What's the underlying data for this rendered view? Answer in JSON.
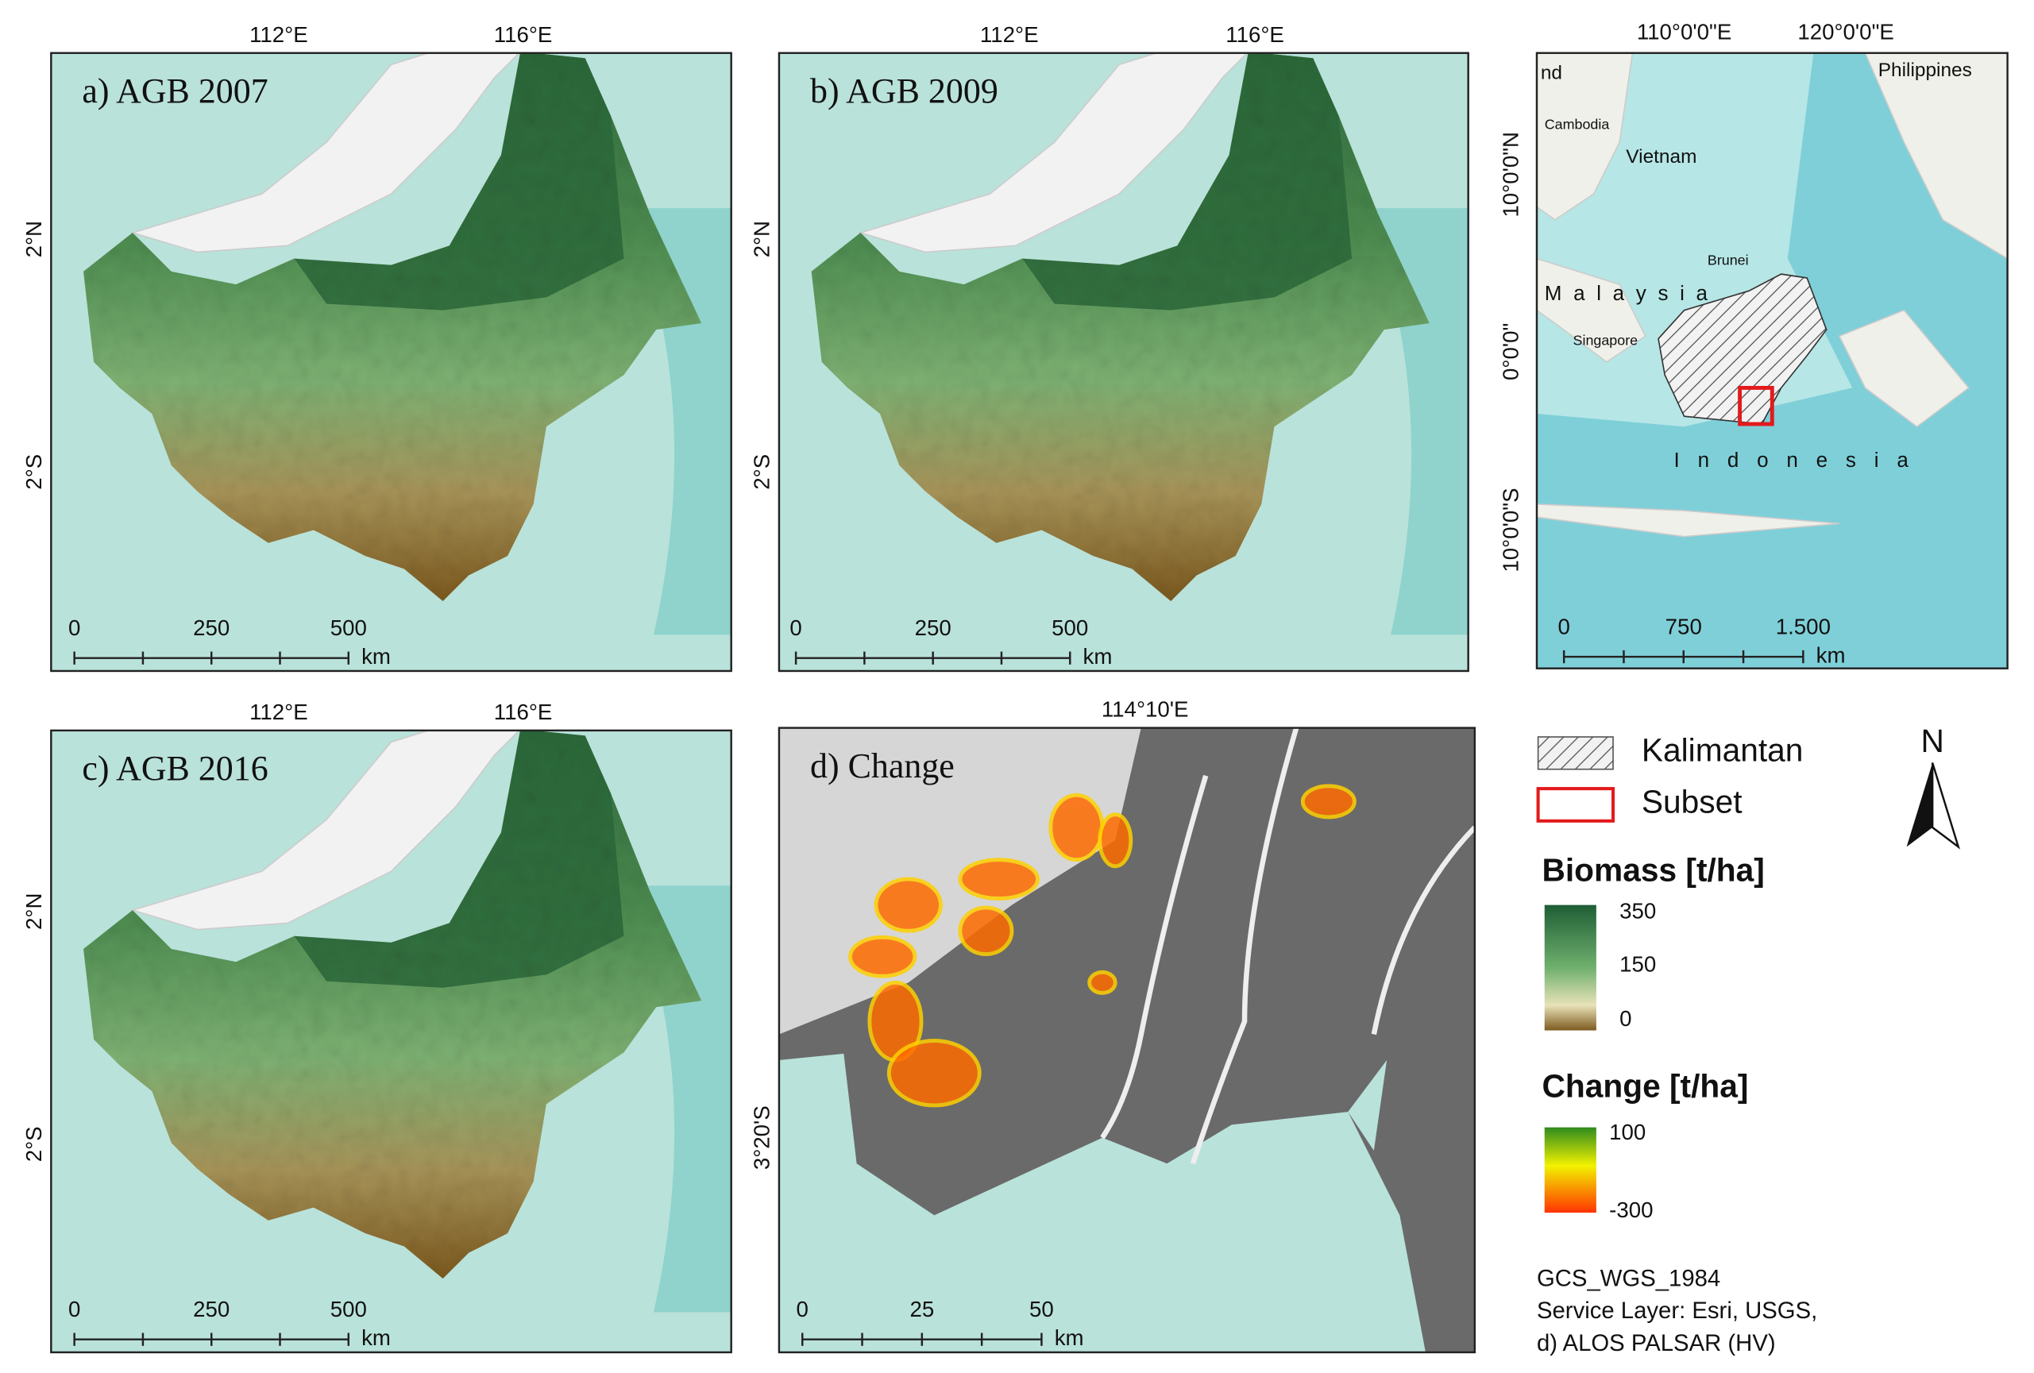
{
  "panels": [
    {
      "title": "a) AGB 2007",
      "x_labels": [
        "112°E",
        "116°E"
      ],
      "y_labels": [
        "2°N",
        "2°S"
      ],
      "scale": [
        "0",
        "250",
        "500"
      ],
      "scale_unit": "km"
    },
    {
      "title": "b) AGB 2009",
      "x_labels": [
        "112°E",
        "116°E"
      ],
      "y_labels": [
        "2°N",
        "2°S"
      ],
      "scale": [
        "0",
        "250",
        "500"
      ],
      "scale_unit": "km"
    },
    {
      "title": "c) AGB 2016",
      "x_labels": [
        "112°E",
        "116°E"
      ],
      "y_labels": [
        "2°N",
        "2°S"
      ],
      "scale": [
        "0",
        "250",
        "500"
      ],
      "scale_unit": "km"
    },
    {
      "title": "d) Change",
      "x_labels": [
        "114°10'E"
      ],
      "y_labels": [
        "3°20'S"
      ],
      "scale": [
        "0",
        "25",
        "50"
      ],
      "scale_unit": "km"
    }
  ],
  "inset": {
    "x_labels": [
      "110°0'0\"E",
      "120°0'0\"E"
    ],
    "y_labels": [
      "10°0'0\"N",
      "0°0'0\"",
      "10°0'0\"S"
    ],
    "places": [
      "nd",
      "Cambodia",
      "Vietnam",
      "Philippines",
      "Brunei",
      "Malaysia",
      "Singapore",
      "Indonesia"
    ],
    "scale": [
      "0",
      "750",
      "1.500"
    ],
    "scale_unit": "km"
  },
  "legend": {
    "items": [
      "Kalimantan",
      "Subset"
    ],
    "north": "N",
    "biomass": {
      "title": "Biomass [t/ha]",
      "labels": [
        "350",
        "150",
        "0"
      ]
    },
    "change": {
      "title": "Change [t/ha]",
      "labels": [
        "100",
        "-300"
      ]
    },
    "credits": [
      "GCS_WGS_1984",
      "Service Layer: Esri, USGS,",
      "d) ALOS PALSAR (HV)"
    ]
  }
}
